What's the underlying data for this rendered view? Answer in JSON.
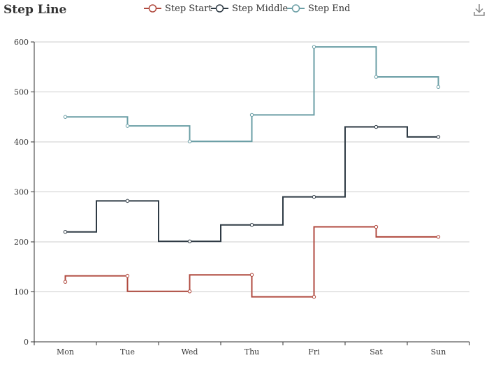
{
  "chart_data": {
    "type": "line",
    "step_modes": [
      "start",
      "middle",
      "end"
    ],
    "title": "Step Line",
    "categories": [
      "Mon",
      "Tue",
      "Wed",
      "Thu",
      "Fri",
      "Sat",
      "Sun"
    ],
    "ylim": [
      0,
      600
    ],
    "yticks": [
      0,
      100,
      200,
      300,
      400,
      500,
      600
    ],
    "grid": "horizontal",
    "legend_position": "top-center",
    "series": [
      {
        "name": "Step Start",
        "step": "start",
        "color": "#b04a3f",
        "values": [
          120,
          132,
          101,
          134,
          90,
          230,
          210
        ]
      },
      {
        "name": "Step Middle",
        "step": "middle",
        "color": "#2f3b45",
        "values": [
          220,
          282,
          201,
          234,
          290,
          430,
          410
        ]
      },
      {
        "name": "Step End",
        "step": "end",
        "color": "#6a9ea5",
        "values": [
          450,
          432,
          401,
          454,
          590,
          530,
          510
        ]
      }
    ]
  },
  "toolbar": {
    "download_icon": "download-icon"
  }
}
